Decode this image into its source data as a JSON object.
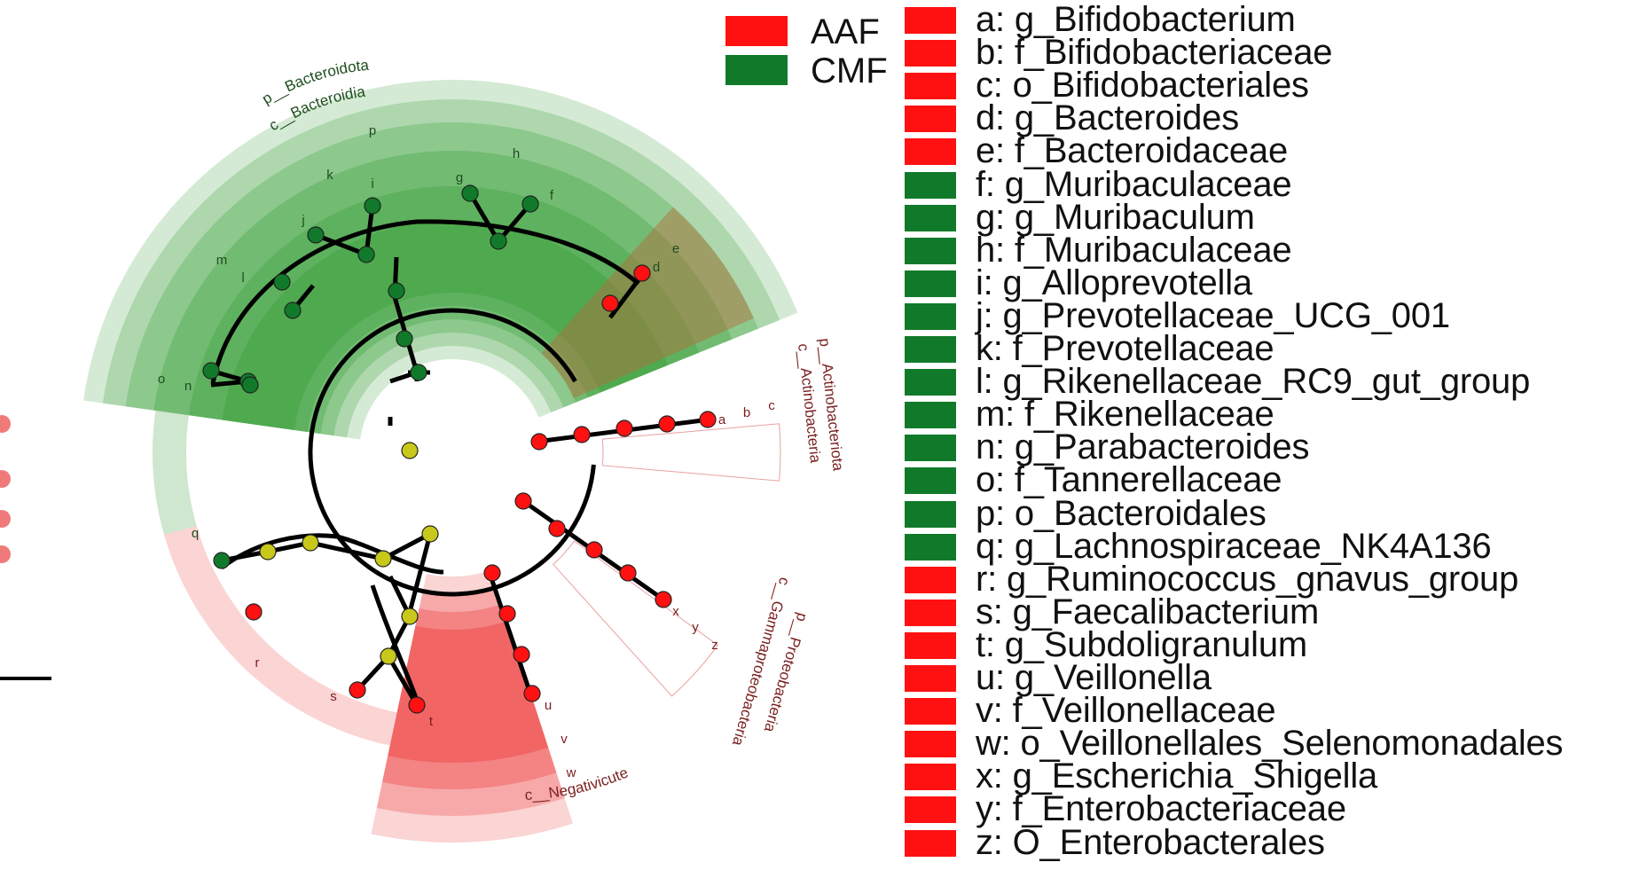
{
  "colors": {
    "aaf": "#ff1111",
    "cmf": "#117a2a",
    "neutral_node": "#c8c81a",
    "green_band": "#3aa13a",
    "red_band": "#ee3b3b",
    "branch": "#000000"
  },
  "group_legend": [
    {
      "label": "AAF",
      "color": "#ff1111"
    },
    {
      "label": "CMF",
      "color": "#117a2a"
    }
  ],
  "taxa_legend": [
    {
      "text": "a: g_Bifidobacterium",
      "group": "AAF"
    },
    {
      "text": "b: f_Bifidobacteriaceae",
      "group": "AAF"
    },
    {
      "text": "c: o_Bifidobacteriales",
      "group": "AAF"
    },
    {
      "text": "d: g_Bacteroides",
      "group": "AAF"
    },
    {
      "text": "e: f_Bacteroidaceae",
      "group": "AAF"
    },
    {
      "text": "f: g_Muribaculaceae",
      "group": "CMF"
    },
    {
      "text": "g: g_Muribaculum",
      "group": "CMF"
    },
    {
      "text": "h: f_Muribaculaceae",
      "group": "CMF"
    },
    {
      "text": "i: g_Alloprevotella",
      "group": "CMF"
    },
    {
      "text": "j: g_Prevotellaceae_UCG_001",
      "group": "CMF"
    },
    {
      "text": "k: f_Prevotellaceae",
      "group": "CMF"
    },
    {
      "text": "l: g_Rikenellaceae_RC9_gut_group",
      "group": "CMF"
    },
    {
      "text": "m: f_Rikenellaceae",
      "group": "CMF"
    },
    {
      "text": "n: g_Parabacteroides",
      "group": "CMF"
    },
    {
      "text": "o: f_Tannerellaceae",
      "group": "CMF"
    },
    {
      "text": "p: o_Bacteroidales",
      "group": "CMF"
    },
    {
      "text": "q: g_Lachnospiraceae_NK4A136",
      "group": "CMF"
    },
    {
      "text": "r: g_Ruminococcus_gnavus_group",
      "group": "AAF"
    },
    {
      "text": "s: g_Faecalibacterium",
      "group": "AAF"
    },
    {
      "text": "t: g_Subdoligranulum",
      "group": "AAF"
    },
    {
      "text": "u: g_Veillonella",
      "group": "AAF"
    },
    {
      "text": "v: f_Veillonellaceae",
      "group": "AAF"
    },
    {
      "text": "w: o_Veillonellales_Selenomonadales",
      "group": "AAF"
    },
    {
      "text": "x: g_Escherichia_Shigella",
      "group": "AAF"
    },
    {
      "text": "y: f_Enterobacteriaceae",
      "group": "AAF"
    },
    {
      "text": "z: O_Enterobacterales",
      "group": "AAF"
    }
  ],
  "cladogram": {
    "green_clade_labels": {
      "phylum": "p__Bacteroidota",
      "class": "c__Bacteroidia"
    },
    "green_sector_letters": [
      "p",
      "h",
      "k",
      "i",
      "g",
      "f",
      "m",
      "l",
      "j",
      "o",
      "n",
      "e",
      "d"
    ],
    "actino_labels": {
      "phylum": "p__Actinobacteriota",
      "class": "c__Actinobacteria"
    },
    "actino_letters": [
      "a",
      "b",
      "c"
    ],
    "proteo_labels": {
      "phylum": "p__Proteobacteria",
      "class": "c__Gammaproteobacteria"
    },
    "proteo_letters": [
      "x",
      "y",
      "z"
    ],
    "negativicutes_label": "c__Negativicutes",
    "negativicutes_letters": [
      "u",
      "v",
      "w"
    ],
    "lower_letters": [
      "q",
      "r",
      "s",
      "t"
    ]
  }
}
